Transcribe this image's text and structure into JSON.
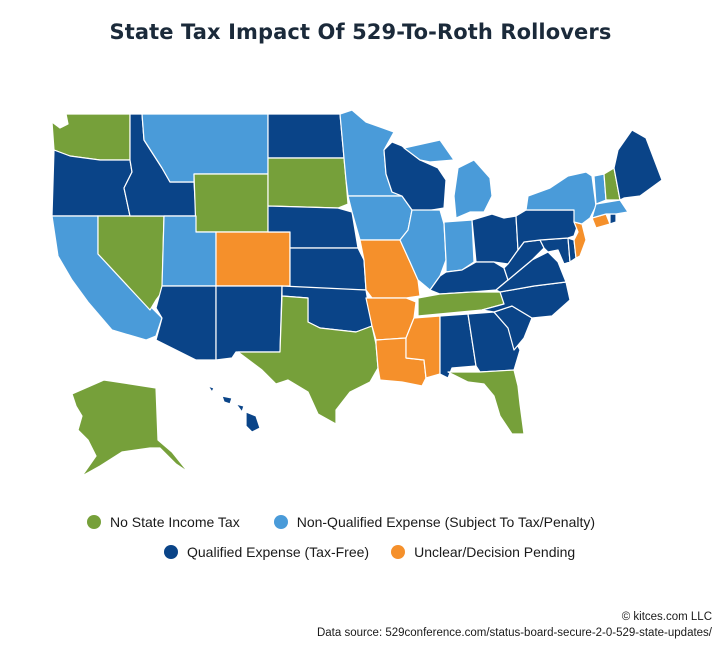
{
  "title": "State Tax Impact Of 529-To-Roth Rollovers",
  "categories": {
    "none": {
      "label": "No State Income Tax",
      "color": "#76a03a"
    },
    "nonqual": {
      "label": "Non-Qualified Expense (Subject To Tax/Penalty)",
      "color": "#4a9bd9"
    },
    "qual": {
      "label": "Qualified Expense (Tax-Free)",
      "color": "#0a4488"
    },
    "unclear": {
      "label": "Unclear/Decision Pending",
      "color": "#f5902b"
    }
  },
  "states": {
    "WA": "none",
    "OR": "qual",
    "CA": "nonqual",
    "NV": "none",
    "ID": "qual",
    "MT": "nonqual",
    "WY": "none",
    "UT": "nonqual",
    "CO": "unclear",
    "AZ": "qual",
    "NM": "qual",
    "ND": "qual",
    "SD": "none",
    "NE": "qual",
    "KS": "qual",
    "OK": "qual",
    "TX": "none",
    "MN": "nonqual",
    "IA": "nonqual",
    "MO": "unclear",
    "AR": "unclear",
    "LA": "unclear",
    "WI": "qual",
    "IL": "nonqual",
    "MI": "nonqual",
    "IN": "nonqual",
    "OH": "qual",
    "KY": "qual",
    "TN": "none",
    "MS": "unclear",
    "AL": "qual",
    "GA": "qual",
    "FL": "none",
    "SC": "qual",
    "NC": "qual",
    "VA": "qual",
    "WV": "qual",
    "MD": "qual",
    "DE": "qual",
    "PA": "qual",
    "NJ": "unclear",
    "NY": "nonqual",
    "CT": "unclear",
    "RI": "qual",
    "MA": "nonqual",
    "VT": "nonqual",
    "NH": "none",
    "ME": "qual",
    "AK": "none",
    "HI": "qual"
  },
  "footer": {
    "copyright": "© kitces.com LLC",
    "source": "Data source: 529conference.com/status-board-secure-2-0-529-state-updates/"
  }
}
